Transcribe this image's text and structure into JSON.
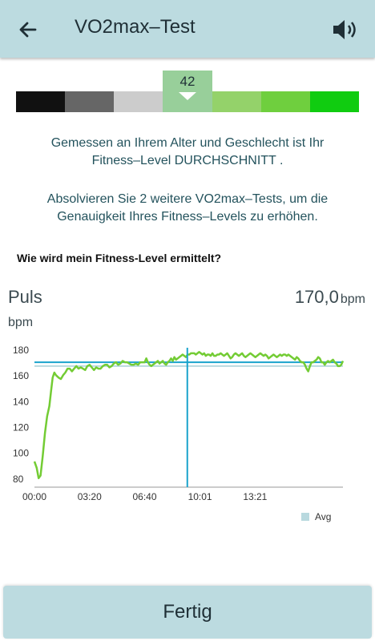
{
  "header": {
    "title": "VO2max–Test"
  },
  "scale": {
    "value_label": "42",
    "segments": [
      "#111111",
      "#666666",
      "#cccccc",
      "#98cf9a",
      "#94d26a",
      "#6fcf3e",
      "#10cc10"
    ],
    "active_index": 3
  },
  "messages": {
    "line1": "Gemessen an Ihrem Alter und Geschlecht ist Ihr",
    "line2": "Fitness–Level  DURCHSCHNITT .",
    "line3": "Absolvieren Sie 2 weitere VO2max–Tests, um die",
    "line4": "Genauigkeit Ihres Fitness–Levels zu erhöhen."
  },
  "help_link": "Wie wird mein Fitness-Level ermittelt?",
  "metric": {
    "name": "Puls",
    "value": "170,0",
    "value_unit": "bpm",
    "unit_label": "bpm"
  },
  "chart_data": {
    "type": "line",
    "ylabel": "bpm",
    "ylim": [
      73,
      185
    ],
    "yticks": [
      80,
      100,
      120,
      140,
      160,
      180
    ],
    "xlim": [
      0,
      1120
    ],
    "xticks": [
      {
        "t": 0,
        "label": "00:00"
      },
      {
        "t": 200,
        "label": "03:20"
      },
      {
        "t": 400,
        "label": "06:40"
      },
      {
        "t": 601,
        "label": "10:01"
      },
      {
        "t": 801,
        "label": "13:21"
      }
    ],
    "series": [
      {
        "color": "#73cc34",
        "points": [
          [
            0,
            93
          ],
          [
            8,
            88
          ],
          [
            15,
            80
          ],
          [
            22,
            82
          ],
          [
            30,
            97
          ],
          [
            38,
            115
          ],
          [
            46,
            128
          ],
          [
            54,
            136
          ],
          [
            60,
            147
          ],
          [
            66,
            158
          ],
          [
            72,
            162
          ],
          [
            78,
            160
          ],
          [
            88,
            158
          ],
          [
            96,
            157
          ],
          [
            104,
            160
          ],
          [
            112,
            162
          ],
          [
            120,
            165
          ],
          [
            128,
            165
          ],
          [
            136,
            163
          ],
          [
            144,
            165
          ],
          [
            152,
            167
          ],
          [
            160,
            165
          ],
          [
            168,
            166
          ],
          [
            176,
            165
          ],
          [
            184,
            164
          ],
          [
            192,
            167
          ],
          [
            200,
            168
          ],
          [
            208,
            166
          ],
          [
            216,
            164
          ],
          [
            224,
            166
          ],
          [
            232,
            165
          ],
          [
            240,
            165
          ],
          [
            248,
            167
          ],
          [
            256,
            168
          ],
          [
            264,
            168
          ],
          [
            272,
            166
          ],
          [
            280,
            167
          ],
          [
            288,
            169
          ],
          [
            296,
            170
          ],
          [
            304,
            168
          ],
          [
            312,
            169
          ],
          [
            320,
            171
          ],
          [
            328,
            170
          ],
          [
            336,
            170
          ],
          [
            344,
            169
          ],
          [
            352,
            168
          ],
          [
            360,
            168
          ],
          [
            368,
            169
          ],
          [
            376,
            168
          ],
          [
            384,
            170
          ],
          [
            392,
            170
          ],
          [
            400,
            170
          ],
          [
            406,
            173
          ],
          [
            412,
            170
          ],
          [
            418,
            168
          ],
          [
            424,
            167
          ],
          [
            430,
            168
          ],
          [
            436,
            169
          ],
          [
            442,
            170
          ],
          [
            448,
            171
          ],
          [
            454,
            169
          ],
          [
            460,
            170
          ],
          [
            466,
            171
          ],
          [
            472,
            169
          ],
          [
            478,
            168
          ],
          [
            484,
            170
          ],
          [
            490,
            171
          ],
          [
            496,
            173
          ],
          [
            502,
            171
          ],
          [
            508,
            174
          ],
          [
            514,
            172
          ],
          [
            520,
            173
          ],
          [
            526,
            174
          ],
          [
            532,
            175
          ],
          [
            538,
            176
          ],
          [
            544,
            175
          ],
          [
            550,
            174
          ],
          [
            556,
            176
          ],
          [
            562,
            176
          ],
          [
            568,
            177
          ],
          [
            574,
            177
          ],
          [
            580,
            177
          ],
          [
            586,
            176
          ],
          [
            592,
            177
          ],
          [
            598,
            178
          ],
          [
            604,
            177
          ],
          [
            610,
            176
          ],
          [
            616,
            177
          ],
          [
            622,
            175
          ],
          [
            628,
            176
          ],
          [
            634,
            176
          ],
          [
            640,
            175
          ],
          [
            646,
            177
          ],
          [
            652,
            175
          ],
          [
            658,
            175
          ],
          [
            664,
            176
          ],
          [
            670,
            176
          ],
          [
            676,
            177
          ],
          [
            682,
            176
          ],
          [
            688,
            175
          ],
          [
            694,
            176
          ],
          [
            700,
            177
          ],
          [
            706,
            175
          ],
          [
            712,
            173
          ],
          [
            718,
            174
          ],
          [
            724,
            176
          ],
          [
            730,
            177
          ],
          [
            736,
            176
          ],
          [
            742,
            175
          ],
          [
            748,
            176
          ],
          [
            754,
            177
          ],
          [
            760,
            175
          ],
          [
            766,
            174
          ],
          [
            772,
            175
          ],
          [
            778,
            176
          ],
          [
            784,
            177
          ],
          [
            790,
            176
          ],
          [
            796,
            175
          ],
          [
            802,
            174
          ],
          [
            808,
            175
          ],
          [
            814,
            176
          ],
          [
            820,
            177
          ],
          [
            826,
            176
          ],
          [
            832,
            175
          ],
          [
            838,
            176
          ],
          [
            844,
            175
          ],
          [
            850,
            173
          ],
          [
            856,
            174
          ],
          [
            862,
            175
          ],
          [
            868,
            176
          ],
          [
            874,
            175
          ],
          [
            880,
            174
          ],
          [
            886,
            175
          ],
          [
            892,
            176
          ],
          [
            898,
            175
          ],
          [
            904,
            176
          ],
          [
            910,
            176
          ],
          [
            916,
            175
          ],
          [
            922,
            176
          ],
          [
            928,
            175
          ],
          [
            934,
            174
          ],
          [
            940,
            173
          ],
          [
            946,
            172
          ],
          [
            952,
            174
          ],
          [
            958,
            173
          ],
          [
            964,
            171
          ],
          [
            970,
            170
          ],
          [
            976,
            170
          ],
          [
            982,
            168
          ],
          [
            988,
            165
          ],
          [
            994,
            163
          ],
          [
            1000,
            167
          ],
          [
            1006,
            170
          ],
          [
            1012,
            170
          ],
          [
            1018,
            171
          ],
          [
            1024,
            172
          ],
          [
            1030,
            174
          ],
          [
            1036,
            173
          ],
          [
            1042,
            170
          ],
          [
            1048,
            170
          ],
          [
            1054,
            168
          ],
          [
            1060,
            170
          ],
          [
            1066,
            171
          ],
          [
            1072,
            170
          ],
          [
            1078,
            171
          ],
          [
            1084,
            172
          ],
          [
            1090,
            170
          ],
          [
            1096,
            169
          ],
          [
            1102,
            167
          ],
          [
            1108,
            167
          ],
          [
            1114,
            168
          ],
          [
            1120,
            171
          ]
        ]
      }
    ],
    "reference_lines": [
      {
        "name": "Avg",
        "value": 167.0,
        "color": "#b9d9df"
      },
      {
        "value": 170.0,
        "color": "#1aa3cc"
      }
    ],
    "cursor_t": 555,
    "cursor_color": "#1aa3cc",
    "legend": {
      "label": "Avg",
      "color": "#b9d9df",
      "position": "bottom-right"
    }
  },
  "footer": {
    "done_label": "Fertig"
  }
}
